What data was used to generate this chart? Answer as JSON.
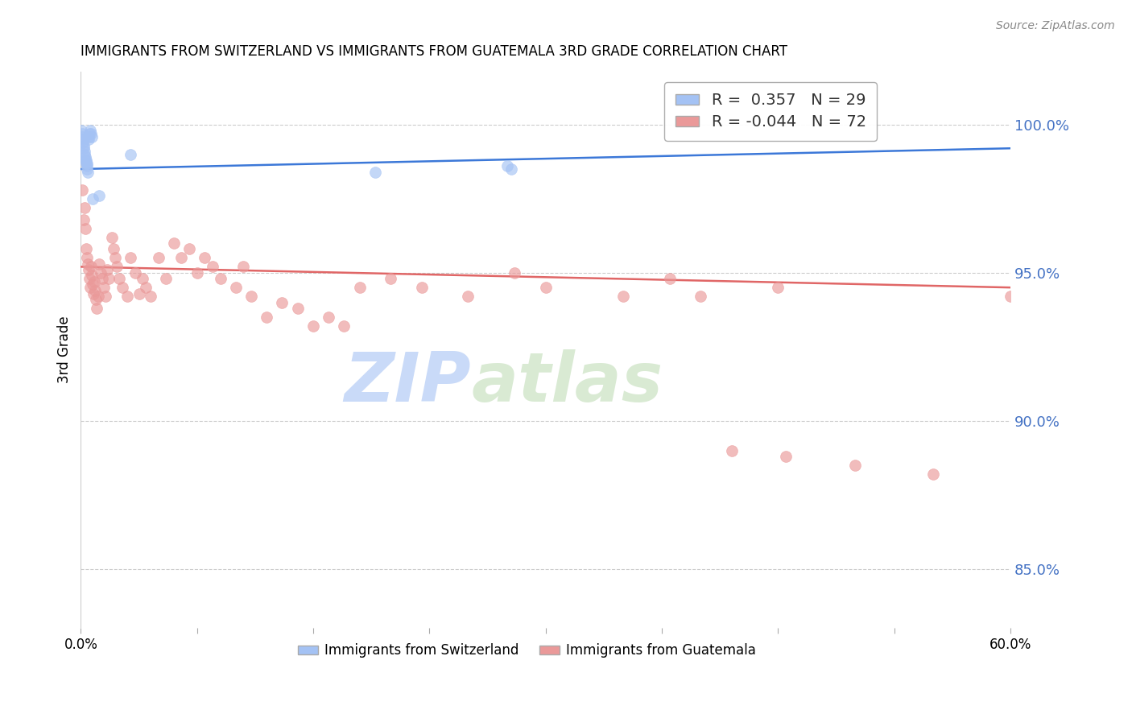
{
  "title": "IMMIGRANTS FROM SWITZERLAND VS IMMIGRANTS FROM GUATEMALA 3RD GRADE CORRELATION CHART",
  "source": "Source: ZipAtlas.com",
  "ylabel": "3rd Grade",
  "right_yticks": [
    85.0,
    90.0,
    95.0,
    100.0
  ],
  "ylim": [
    83.0,
    101.8
  ],
  "xlim": [
    0.0,
    60.0
  ],
  "R_blue": 0.357,
  "N_blue": 29,
  "R_pink": -0.044,
  "N_pink": 72,
  "blue_scatter": [
    [
      0.05,
      99.8
    ],
    [
      0.08,
      99.7
    ],
    [
      0.1,
      99.6
    ],
    [
      0.12,
      99.5
    ],
    [
      0.15,
      99.4
    ],
    [
      0.18,
      99.3
    ],
    [
      0.2,
      99.2
    ],
    [
      0.22,
      99.1
    ],
    [
      0.25,
      99.0
    ],
    [
      0.28,
      98.9
    ],
    [
      0.3,
      98.8
    ],
    [
      0.32,
      98.8
    ],
    [
      0.35,
      98.7
    ],
    [
      0.38,
      98.7
    ],
    [
      0.4,
      98.6
    ],
    [
      0.42,
      98.5
    ],
    [
      0.45,
      98.4
    ],
    [
      0.48,
      99.5
    ],
    [
      0.5,
      99.6
    ],
    [
      0.55,
      99.7
    ],
    [
      0.6,
      99.8
    ],
    [
      0.65,
      99.7
    ],
    [
      0.7,
      99.6
    ],
    [
      0.75,
      97.5
    ],
    [
      1.2,
      97.6
    ],
    [
      3.2,
      99.0
    ],
    [
      19.0,
      98.4
    ],
    [
      27.5,
      98.6
    ],
    [
      27.8,
      98.5
    ]
  ],
  "pink_scatter": [
    [
      0.1,
      97.8
    ],
    [
      0.2,
      96.8
    ],
    [
      0.25,
      97.2
    ],
    [
      0.3,
      96.5
    ],
    [
      0.35,
      95.8
    ],
    [
      0.4,
      95.5
    ],
    [
      0.45,
      95.3
    ],
    [
      0.5,
      95.1
    ],
    [
      0.55,
      94.8
    ],
    [
      0.6,
      94.5
    ],
    [
      0.65,
      95.2
    ],
    [
      0.7,
      94.9
    ],
    [
      0.75,
      94.6
    ],
    [
      0.8,
      94.3
    ],
    [
      0.85,
      94.7
    ],
    [
      0.9,
      94.4
    ],
    [
      0.95,
      94.1
    ],
    [
      1.0,
      93.8
    ],
    [
      1.1,
      94.2
    ],
    [
      1.2,
      95.3
    ],
    [
      1.3,
      95.0
    ],
    [
      1.4,
      94.8
    ],
    [
      1.5,
      94.5
    ],
    [
      1.6,
      94.2
    ],
    [
      1.7,
      95.1
    ],
    [
      1.8,
      94.8
    ],
    [
      2.0,
      96.2
    ],
    [
      2.1,
      95.8
    ],
    [
      2.2,
      95.5
    ],
    [
      2.3,
      95.2
    ],
    [
      2.5,
      94.8
    ],
    [
      2.7,
      94.5
    ],
    [
      3.0,
      94.2
    ],
    [
      3.2,
      95.5
    ],
    [
      3.5,
      95.0
    ],
    [
      3.8,
      94.3
    ],
    [
      4.0,
      94.8
    ],
    [
      4.2,
      94.5
    ],
    [
      4.5,
      94.2
    ],
    [
      5.0,
      95.5
    ],
    [
      5.5,
      94.8
    ],
    [
      6.0,
      96.0
    ],
    [
      6.5,
      95.5
    ],
    [
      7.0,
      95.8
    ],
    [
      7.5,
      95.0
    ],
    [
      8.0,
      95.5
    ],
    [
      8.5,
      95.2
    ],
    [
      9.0,
      94.8
    ],
    [
      10.0,
      94.5
    ],
    [
      10.5,
      95.2
    ],
    [
      11.0,
      94.2
    ],
    [
      12.0,
      93.5
    ],
    [
      13.0,
      94.0
    ],
    [
      14.0,
      93.8
    ],
    [
      15.0,
      93.2
    ],
    [
      16.0,
      93.5
    ],
    [
      17.0,
      93.2
    ],
    [
      18.0,
      94.5
    ],
    [
      20.0,
      94.8
    ],
    [
      22.0,
      94.5
    ],
    [
      25.0,
      94.2
    ],
    [
      28.0,
      95.0
    ],
    [
      30.0,
      94.5
    ],
    [
      35.0,
      94.2
    ],
    [
      38.0,
      94.8
    ],
    [
      40.0,
      94.2
    ],
    [
      45.0,
      94.5
    ],
    [
      50.0,
      88.5
    ],
    [
      55.0,
      88.2
    ],
    [
      42.0,
      89.0
    ],
    [
      45.5,
      88.8
    ],
    [
      60.0,
      94.2
    ]
  ],
  "blue_color": "#a4c2f4",
  "pink_color": "#ea9999",
  "blue_line_color": "#3c78d8",
  "pink_line_color": "#e06666",
  "background_color": "#ffffff",
  "grid_color": "#cccccc",
  "right_axis_color": "#4472c4",
  "watermark_zip_color": "#c9daf8",
  "watermark_atlas_color": "#d9ead3"
}
